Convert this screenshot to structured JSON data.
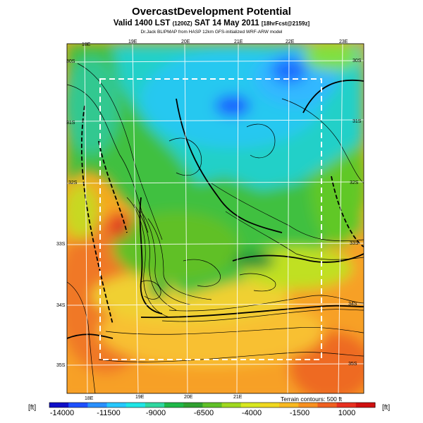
{
  "header": {
    "title": "OvercastDevelopment Potential",
    "subtitle_main": "Valid 1400 LST",
    "subtitle_utc": "(1200Z)",
    "subtitle_date": "SAT 14 May 2011",
    "subtitle_fcst": "[18hrFcst@2159z]",
    "credit": "Dr.Jack BLIPMAP from HASP 12km GFS-initialized WRF-ARW model"
  },
  "map": {
    "lon_labels_top": [
      "18E",
      "19E",
      "20E",
      "21E",
      "22E",
      "23E"
    ],
    "lon_labels_bottom": [
      "18E",
      "19E",
      "20E",
      "21E"
    ],
    "lat_labels_left": [
      "30S",
      "31S",
      "32S",
      "33S",
      "34S",
      "35S"
    ],
    "lat_labels_right": [
      "30S",
      "31S",
      "32S",
      "33S",
      "34S",
      "35S"
    ],
    "terrain_contours_label": "Terrain contours: 500 ft"
  },
  "colorbar": {
    "unit_left": "[ft]",
    "unit_right": "[ft]",
    "tick_labels": [
      "-14000",
      "-11500",
      "-9000",
      "-6500",
      "-4000",
      "-1500",
      "1000"
    ],
    "colors": [
      "#1010c8",
      "#1e50ff",
      "#2a90ff",
      "#28c8ff",
      "#20e6e6",
      "#30d8a0",
      "#20b848",
      "#30a030",
      "#60c028",
      "#a0d820",
      "#d8e820",
      "#f0d820",
      "#f8b820",
      "#f89020",
      "#f06020",
      "#e83020",
      "#d01010"
    ]
  }
}
